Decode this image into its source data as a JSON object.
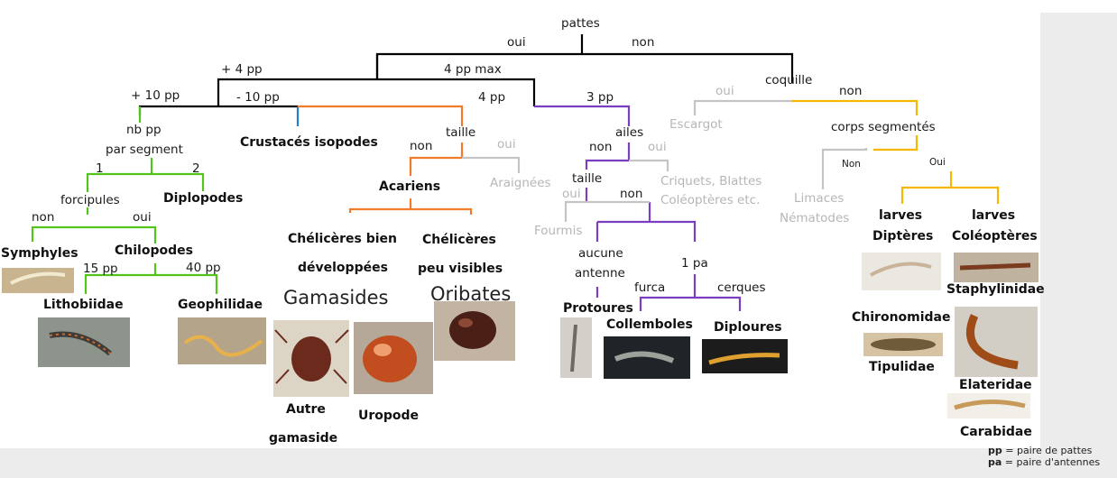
{
  "colors": {
    "black": "#000000",
    "green": "#52c41a",
    "blue": "#1e7fd0",
    "orange": "#f07b2a",
    "purple": "#7a3fc0",
    "gray": "#c4c4c4",
    "yellow": "#f6b700"
  },
  "nodes": {
    "pattes": "pattes",
    "oui_top": "oui",
    "non_top": "non",
    "plus4pp": "+ 4 pp",
    "max4pp": "4 pp max",
    "plus10pp": "+ 10 pp",
    "minus10pp": "- 10 pp",
    "pp4": "4 pp",
    "pp3": "3 pp",
    "nbpp": "nb pp",
    "par_segment": "par segment",
    "one": "1",
    "two": "2",
    "forcipules": "forcipules",
    "non_forc": "non",
    "oui_forc": "oui",
    "diplopodes": "Diplopodes",
    "symphyles": "Symphyles",
    "chilopodes": "Chilopodes",
    "pp15": "15 pp",
    "pp40": "40 pp",
    "lithobiidae": "Lithobiidae",
    "geophilidae": "Geophilidae",
    "crustaces": "Crustacés isopodes",
    "taille": "taille",
    "non_taille": "non",
    "oui_taille": "oui",
    "acariens": "Acariens",
    "araignees": "Araignées",
    "cheliceres_bien_1": "Chélicères bien",
    "cheliceres_bien_2": "développées",
    "cheliceres_peu_1": "Chélicères",
    "cheliceres_peu_2": "peu visibles",
    "gamasides": "Gamasides",
    "oribates": "Oribates",
    "autre_gamaside_1": "Autre",
    "autre_gamaside_2": "gamaside",
    "uropode": "Uropode",
    "ailes": "ailes",
    "non_ailes": "non",
    "oui_ailes": "oui",
    "criquets": "Criquets, Blattes",
    "coleopteres_etc": "Coléoptères etc.",
    "taille2": "taille",
    "oui_taille2": "oui",
    "non_taille2": "non",
    "fourmis": "Fourmis",
    "aucune": "aucune",
    "antenne": "antenne",
    "pa1": "1 pa",
    "furca": "furca",
    "cerques": "cerques",
    "protoures": "Protoures",
    "collemboles": "Collemboles",
    "diploures": "Diploures",
    "coquille": "coquille",
    "oui_coq": "oui",
    "non_coq": "non",
    "escargot": "Escargot",
    "corps_segmentes": "corps segmentés",
    "non_seg": "Non",
    "oui_seg": "Oui",
    "limaces": "Limaces",
    "nematodes": "Nématodes",
    "larves_l": "larves",
    "dipteres": "Diptères",
    "larves_r": "larves",
    "coleopteres": "Coléoptères",
    "staphylinidae": "Staphylinidae",
    "chironomidae": "Chironomidae",
    "tipulidae": "Tipulidae",
    "elateridae": "Elateridae",
    "carabidae": "Carabidae"
  },
  "legend": {
    "pp_abbr": "pp",
    "pp_def": " = paire de pattes",
    "pa_abbr": "pa",
    "pa_def": " = paire d'antennes"
  }
}
